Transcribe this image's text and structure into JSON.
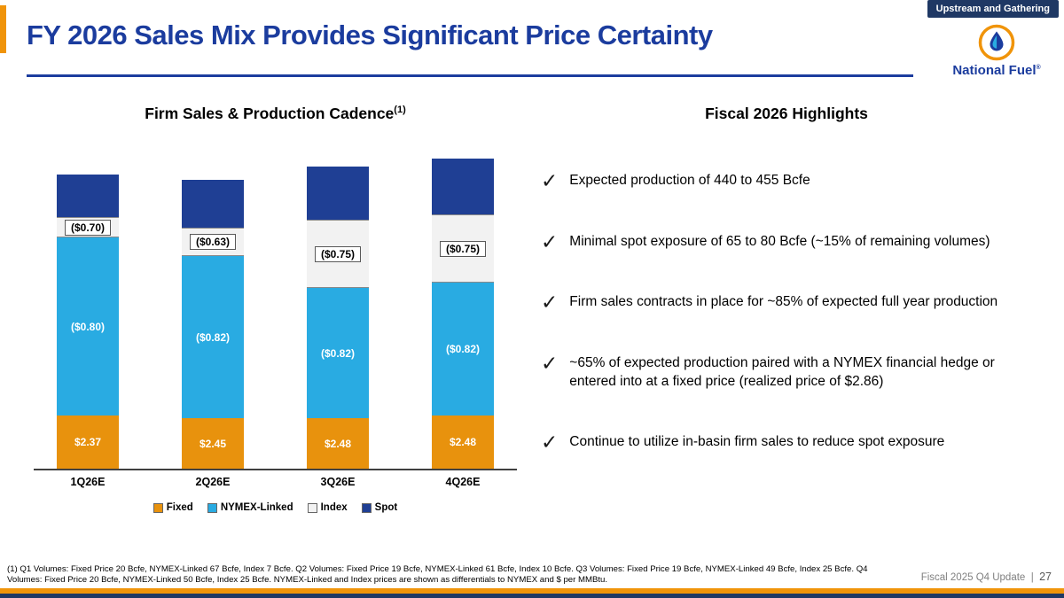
{
  "header": {
    "badge": "Upstream and Gathering",
    "title": "FY 2026 Sales Mix Provides Significant Price Certainty",
    "company": "National Fuel",
    "company_mark": "®"
  },
  "colors": {
    "primary_blue": "#1B3C9E",
    "navy": "#1F3864",
    "light_blue": "#29ABE2",
    "orange": "#E8920D",
    "accent_orange": "#F0940A"
  },
  "chart_data": {
    "type": "bar",
    "subtype": "stacked",
    "title": "Firm Sales & Production Cadence",
    "title_superscript": "(1)",
    "xlabel": "",
    "ylabel": "",
    "unit": "Bcfe",
    "grid": false,
    "legend_position": "bottom",
    "categories": [
      "1Q26E",
      "2Q26E",
      "3Q26E",
      "4Q26E"
    ],
    "series": [
      {
        "name": "Fixed",
        "color": "#E8920D",
        "text_color": "#FFFFFF",
        "label_boxed": false,
        "values": [
          20,
          19,
          19,
          20
        ],
        "labels": [
          "$2.37",
          "$2.45",
          "$2.48",
          "$2.48"
        ]
      },
      {
        "name": "NYMEX-Linked",
        "color": "#29ABE2",
        "text_color": "#FFFFFF",
        "label_boxed": false,
        "values": [
          67,
          61,
          49,
          50
        ],
        "labels": [
          "($0.80)",
          "($0.82)",
          "($0.82)",
          "($0.82)"
        ]
      },
      {
        "name": "Index",
        "color": "#F2F2F2",
        "text_color": "#000000",
        "label_boxed": true,
        "values": [
          7,
          10,
          25,
          25
        ],
        "labels": [
          "($0.70)",
          "($0.63)",
          "($0.75)",
          "($0.75)"
        ]
      },
      {
        "name": "Spot",
        "color": "#1F3F94",
        "text_color": "#FFFFFF",
        "label_boxed": false,
        "values": [
          16,
          18,
          20,
          21
        ],
        "labels": [
          "",
          "",
          "",
          ""
        ]
      }
    ]
  },
  "highlights": {
    "title": "Fiscal 2026 Highlights",
    "bullet_icon": "✓",
    "items": [
      "Expected production of 440 to 455 Bcfe",
      "Minimal spot exposure of 65 to 80 Bcfe (~15% of remaining volumes)",
      "Firm sales contracts in place for ~85% of expected full year production",
      "~65% of expected production paired with a NYMEX financial hedge or entered into at a fixed price (realized price of $2.86)",
      "Continue to utilize in-basin firm sales to reduce spot exposure"
    ]
  },
  "footer": {
    "footnote": "(1) Q1 Volumes: Fixed Price 20 Bcfe, NYMEX-Linked 67 Bcfe, Index 7 Bcfe. Q2 Volumes: Fixed Price 19 Bcfe, NYMEX-Linked 61 Bcfe, Index 10 Bcfe. Q3 Volumes: Fixed Price 19 Bcfe, NYMEX-Linked 49 Bcfe, Index 25 Bcfe. Q4 Volumes: Fixed Price 20 Bcfe, NYMEX-Linked 50 Bcfe, Index 25 Bcfe. NYMEX-Linked and Index prices are shown as differentials to NYMEX and $ per MMBtu.",
    "update_label": "Fiscal 2025 Q4 Update",
    "separator": "|",
    "page_number": "27"
  }
}
